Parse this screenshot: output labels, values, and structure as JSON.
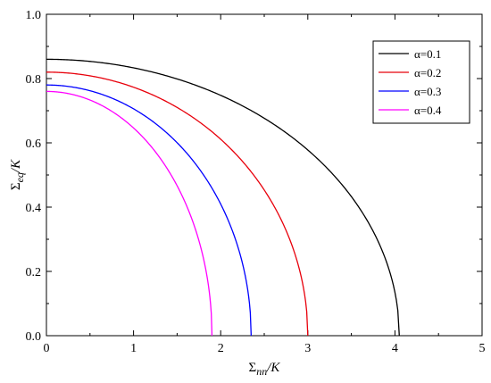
{
  "chart_data": {
    "type": "line",
    "title": "",
    "xlabel": {
      "main": "Σ",
      "sub": "nn",
      "suffix": "/K"
    },
    "ylabel": {
      "main": "Σ",
      "sub": "eq",
      "suffix": "/K"
    },
    "xlim": [
      0,
      5
    ],
    "ylim": [
      0,
      1.0
    ],
    "xticks": [
      0,
      1,
      2,
      3,
      4,
      5
    ],
    "yticks": [
      0.0,
      0.2,
      0.4,
      0.6,
      0.8,
      1.0
    ],
    "xtick_labels": [
      "0",
      "1",
      "2",
      "3",
      "4",
      "5"
    ],
    "ytick_labels": [
      "0.0",
      "0.2",
      "0.4",
      "0.6",
      "0.8",
      "1.0"
    ],
    "grid": false,
    "legend_position": "top-right",
    "series": [
      {
        "name": "α=0.1",
        "color": "#000000",
        "x_max": 4.05,
        "y0": 0.86,
        "x": [
          0,
          0.5,
          1,
          1.5,
          2,
          2.5,
          3,
          3.5,
          3.8,
          4.0,
          4.05
        ],
        "y": [
          0.86,
          0.84,
          0.81,
          0.77,
          0.72,
          0.65,
          0.56,
          0.42,
          0.3,
          0.15,
          0.0
        ]
      },
      {
        "name": "α=0.2",
        "color": "#e8000b",
        "x_max": 3.0,
        "y0": 0.82,
        "x": [
          0,
          0.5,
          1,
          1.5,
          2,
          2.5,
          2.8,
          2.95,
          3.0
        ],
        "y": [
          0.82,
          0.78,
          0.73,
          0.66,
          0.56,
          0.41,
          0.27,
          0.14,
          0.0
        ]
      },
      {
        "name": "α=0.3",
        "color": "#0000ff",
        "x_max": 2.35,
        "y0": 0.78,
        "x": [
          0,
          0.5,
          1,
          1.5,
          2,
          2.2,
          2.3,
          2.35
        ],
        "y": [
          0.78,
          0.72,
          0.65,
          0.53,
          0.35,
          0.22,
          0.12,
          0.0
        ]
      },
      {
        "name": "α=0.4",
        "color": "#ff00ff",
        "x_max": 1.9,
        "y0": 0.76,
        "x": [
          0,
          0.5,
          1,
          1.5,
          1.7,
          1.85,
          1.9
        ],
        "y": [
          0.76,
          0.68,
          0.57,
          0.4,
          0.28,
          0.13,
          0.0
        ]
      }
    ]
  }
}
